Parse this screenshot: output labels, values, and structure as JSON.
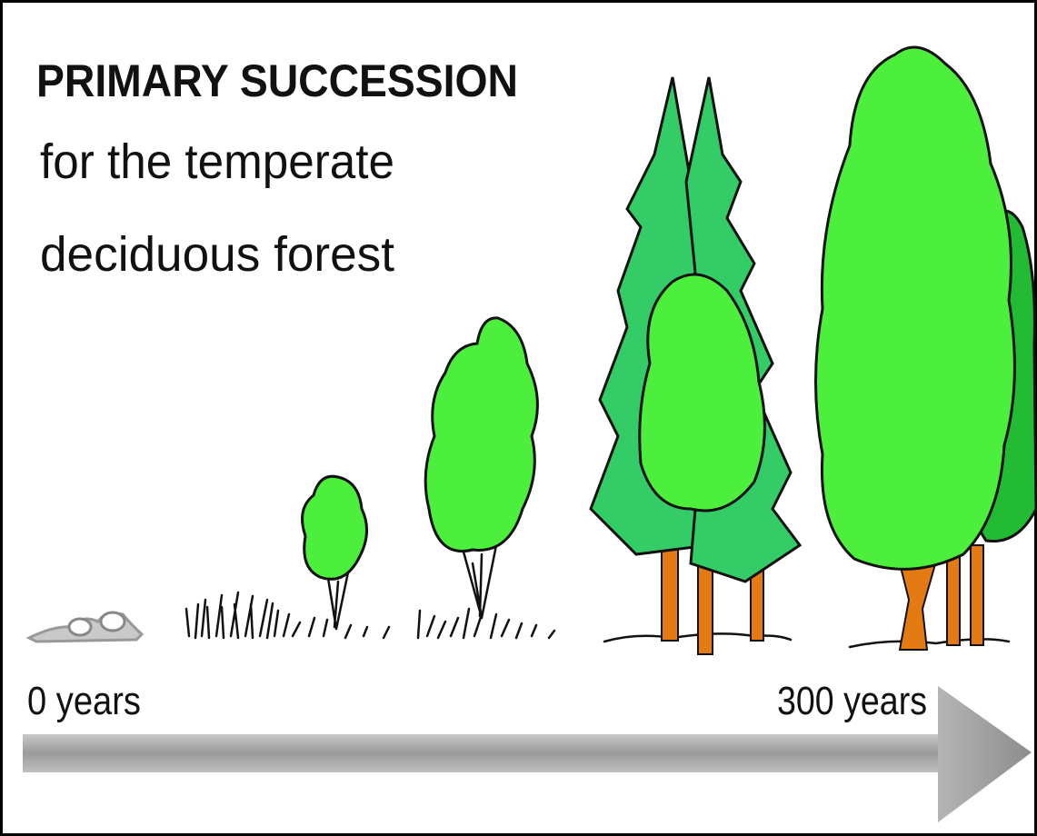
{
  "title": "PRIMARY SUCCESSION",
  "subtitle_lines": [
    "for the temperate",
    "deciduous forest"
  ],
  "timeline": {
    "start": "0 years",
    "end": "300 years"
  }
}
